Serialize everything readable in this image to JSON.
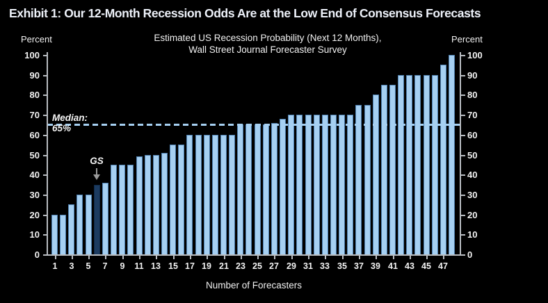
{
  "exhibit_title": "Exhibit 1: Our 12-Month Recession Odds Are at the Low End of Consensus Forecasts",
  "chart_data": {
    "type": "bar",
    "title_line1": "Estimated US Recession Probability (Next 12 Months),",
    "title_line2": "Wall Street Journal Forecaster Survey",
    "ylabel_left": "Percent",
    "ylabel_right": "Percent",
    "xlabel": "Number of Forecasters",
    "ylim": [
      0,
      100
    ],
    "yticks": [
      0,
      10,
      20,
      30,
      40,
      50,
      60,
      70,
      80,
      90,
      100
    ],
    "xtick_labels": [
      1,
      3,
      5,
      7,
      9,
      11,
      13,
      15,
      17,
      19,
      21,
      23,
      25,
      27,
      29,
      31,
      33,
      35,
      37,
      39,
      41,
      43,
      45,
      47
    ],
    "values": [
      20,
      20,
      25,
      30,
      30,
      35,
      36,
      45,
      45,
      45,
      49,
      50,
      50,
      51,
      55,
      55,
      60,
      60,
      60,
      60,
      60,
      60,
      65,
      65,
      65,
      65,
      66,
      68,
      70,
      70,
      70,
      70,
      70,
      70,
      70,
      70,
      75,
      75,
      80,
      85,
      85,
      90,
      90,
      90,
      90,
      90,
      95,
      100
    ],
    "highlight": {
      "bar_number": 6,
      "label": "GS",
      "value": 35
    },
    "median": {
      "value": 65,
      "label": "Median: 65%"
    },
    "legend_position": "none",
    "grid": false,
    "colors": {
      "background": "#000000",
      "bar_fill": "#a6d0f2",
      "bar_border": "#4d7eae",
      "highlight_fill": "#1c3b60",
      "highlight_border": "#0f2947",
      "median_line": "#a6d0f2",
      "axis": "#b9bdc2",
      "text": "#f2f2f2",
      "arrow": "#9a9a9a"
    }
  }
}
